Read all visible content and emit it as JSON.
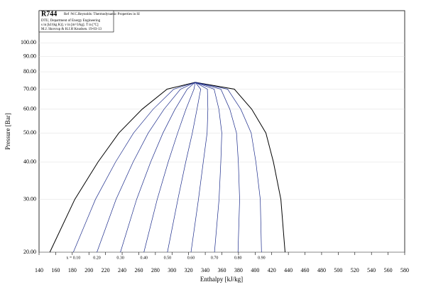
{
  "chart_data": {
    "type": "line",
    "title": "R744",
    "subtitle": "Ref :W.C.Reynolds: Thermodynamic Properties in SI",
    "info_lines": [
      "DTU, Department of Energy Engineering",
      "s in [kJ/(kg K)]. v in [m^3/kg]. T in [ºC]",
      "M.J. Skovrup & H.J.H Knudsen. 19-03-13"
    ],
    "xlabel": "Enthalpy [kJ/kg]",
    "ylabel": "Pressure [Bar]",
    "xlim": [
      140,
      580
    ],
    "ylim": [
      20,
      128
    ],
    "log_y": true,
    "xticks": [
      140,
      160,
      180,
      200,
      220,
      240,
      260,
      280,
      300,
      320,
      340,
      360,
      380,
      400,
      420,
      440,
      460,
      480,
      500,
      520,
      540,
      560,
      580
    ],
    "yticks": [
      {
        "value": 100,
        "label": "100.00"
      },
      {
        "value": 90,
        "label": "90.00"
      },
      {
        "value": 80,
        "label": "80.00"
      },
      {
        "value": 70,
        "label": "70.00"
      },
      {
        "value": 60,
        "label": "60.00"
      },
      {
        "value": 50,
        "label": "50.00"
      },
      {
        "value": 40,
        "label": "40.00"
      },
      {
        "value": 30,
        "label": "30.00"
      },
      {
        "value": 20,
        "label": "20.00"
      }
    ],
    "series": [
      {
        "name": "saturated liquid",
        "color": "#000000",
        "x": [
          153,
          183,
          211,
          236,
          264,
          294,
          328
        ],
        "values": [
          20,
          30,
          40,
          50,
          60,
          70,
          73.8
        ]
      },
      {
        "name": "saturated vapour",
        "color": "#000000",
        "x": [
          436,
          431,
          422,
          413,
          396,
          375,
          328
        ],
        "values": [
          20,
          30,
          40,
          50,
          60,
          70,
          73.8
        ]
      }
    ],
    "qualities": [
      0.1,
      0.2,
      0.3,
      0.4,
      0.5,
      0.6,
      0.7,
      0.8,
      0.9
    ],
    "quality_labels": [
      "x = 0.10",
      "0.20",
      "0.30",
      "0.40",
      "0.50",
      "0.60",
      "0.70",
      "0.80",
      "0.90"
    ],
    "quality_color": "#1a2a8a"
  }
}
